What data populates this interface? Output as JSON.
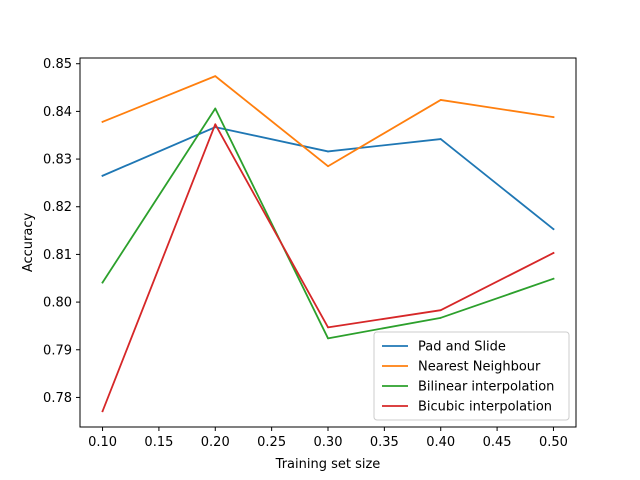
{
  "chart_data": {
    "type": "line",
    "title": "",
    "xlabel": "Training set size",
    "ylabel": "Accuracy",
    "x": [
      0.1,
      0.2,
      0.3,
      0.4,
      0.5
    ],
    "xlim": [
      0.08,
      0.52
    ],
    "ylim": [
      0.7738,
      0.8512
    ],
    "xticks": [
      0.1,
      0.15,
      0.2,
      0.25,
      0.3,
      0.35,
      0.4,
      0.45,
      0.5
    ],
    "xtick_labels": [
      "0.10",
      "0.15",
      "0.20",
      "0.25",
      "0.30",
      "0.35",
      "0.40",
      "0.45",
      "0.50"
    ],
    "yticks": [
      0.78,
      0.79,
      0.8,
      0.81,
      0.82,
      0.83,
      0.84,
      0.85
    ],
    "ytick_labels": [
      "0.78",
      "0.79",
      "0.80",
      "0.81",
      "0.82",
      "0.83",
      "0.84",
      "0.85"
    ],
    "grid": false,
    "legend_position": "bottom-right",
    "series": [
      {
        "name": "Pad and Slide",
        "color": "#1f77b4",
        "values": [
          0.8265,
          0.8367,
          0.8316,
          0.8342,
          0.8153
        ]
      },
      {
        "name": "Nearest Neighbour",
        "color": "#ff7f0e",
        "values": [
          0.8378,
          0.8474,
          0.8285,
          0.8424,
          0.8388
        ]
      },
      {
        "name": "Bilinear interpolation",
        "color": "#2ca02c",
        "values": [
          0.8041,
          0.8406,
          0.7924,
          0.7967,
          0.8049
        ]
      },
      {
        "name": "Bicubic interpolation",
        "color": "#d62728",
        "values": [
          0.7771,
          0.8373,
          0.7947,
          0.7983,
          0.8103
        ]
      }
    ]
  }
}
